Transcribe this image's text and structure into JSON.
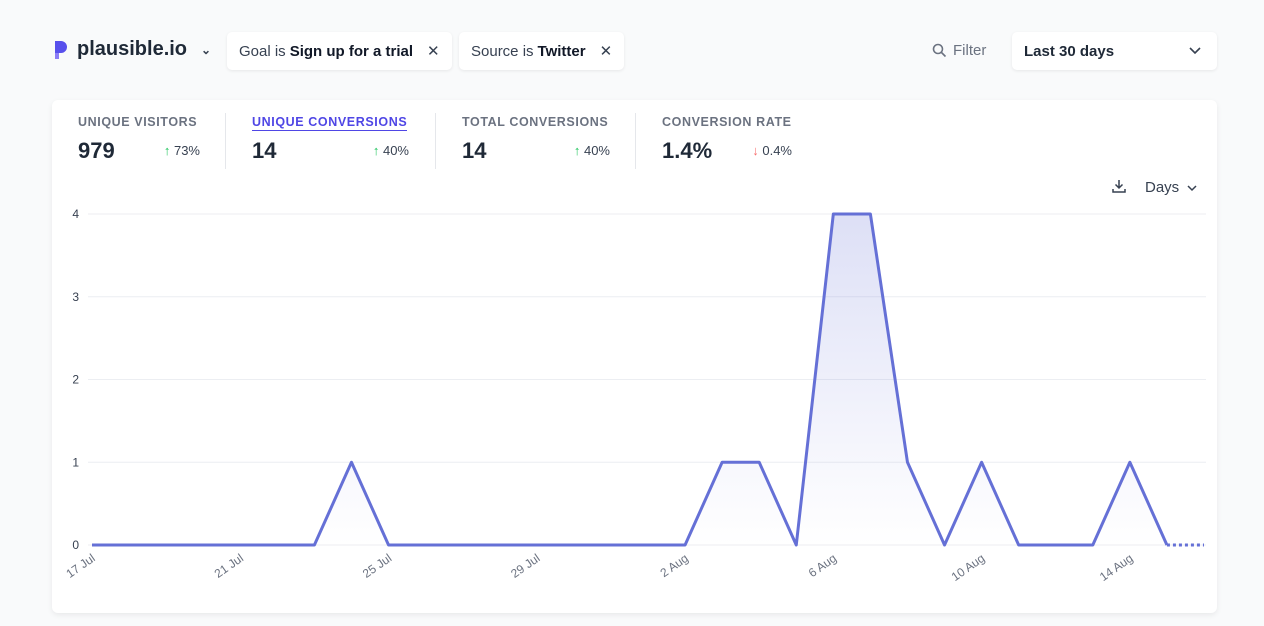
{
  "header": {
    "site": "plausible.io",
    "filters": [
      {
        "prefix": "Goal is",
        "value": "Sign up for a trial"
      },
      {
        "prefix": "Source is",
        "value": "Twitter"
      }
    ],
    "filter_label": "Filter",
    "date_range": "Last 30 days"
  },
  "stats": [
    {
      "label": "UNIQUE VISITORS",
      "value": "979",
      "change": "73%",
      "direction": "up",
      "active": false
    },
    {
      "label": "UNIQUE CONVERSIONS",
      "value": "14",
      "change": "40%",
      "direction": "up",
      "active": true
    },
    {
      "label": "TOTAL CONVERSIONS",
      "value": "14",
      "change": "40%",
      "direction": "up",
      "active": false
    },
    {
      "label": "CONVERSION RATE",
      "value": "1.4%",
      "change": "0.4%",
      "direction": "down",
      "active": false
    }
  ],
  "chart_controls": {
    "interval": "Days"
  },
  "colors": {
    "accent": "#4f46e5",
    "line": "#6570d6",
    "up": "#22c55e",
    "down": "#f87171"
  },
  "chart_data": {
    "type": "line",
    "x": [
      "17 Jul",
      "18 Jul",
      "19 Jul",
      "20 Jul",
      "21 Jul",
      "22 Jul",
      "23 Jul",
      "24 Jul",
      "25 Jul",
      "26 Jul",
      "27 Jul",
      "28 Jul",
      "29 Jul",
      "30 Jul",
      "31 Jul",
      "1 Aug",
      "2 Aug",
      "3 Aug",
      "4 Aug",
      "5 Aug",
      "6 Aug",
      "7 Aug",
      "8 Aug",
      "9 Aug",
      "10 Aug",
      "11 Aug",
      "12 Aug",
      "13 Aug",
      "14 Aug",
      "15 Aug",
      "16 Aug"
    ],
    "values": [
      0,
      0,
      0,
      0,
      0,
      0,
      0,
      1,
      0,
      0,
      0,
      0,
      0,
      0,
      0,
      0,
      0,
      1,
      1,
      0,
      4,
      4,
      1,
      0,
      1,
      0,
      0,
      0,
      1,
      0,
      0
    ],
    "x_tick_labels": [
      "17 Jul",
      "21 Jul",
      "25 Jul",
      "29 Jul",
      "2 Aug",
      "6 Aug",
      "10 Aug",
      "14 Aug"
    ],
    "y_ticks": [
      "0",
      "1",
      "2",
      "3",
      "4"
    ],
    "ylim": [
      0,
      4
    ],
    "grid": true,
    "last_point_incomplete": true
  }
}
